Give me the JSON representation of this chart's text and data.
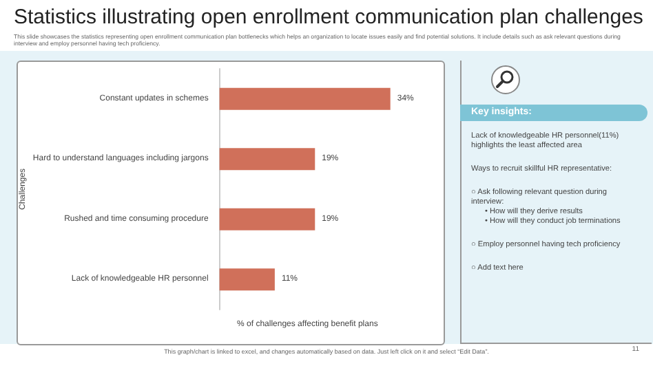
{
  "chart_data": {
    "type": "bar",
    "orientation": "horizontal",
    "title": "Statistics illustrating open enrollment communication plan challenges",
    "subtitle": "This slide showcases the statistics representing open enrollment communication plan bottlenecks which helps an organization to locate issues easily and find potential solutions. It include details such as ask relevant questions during interview and employ personnel having tech proficiency.",
    "xlabel": "% of challenges affecting benefit plans",
    "ylabel": "Challenges",
    "categories": [
      "Constant updates in schemes",
      "Hard to understand languages including jargons",
      "Rushed and time consuming procedure",
      "Lack of knowledgeable HR personnel"
    ],
    "values": [
      34,
      19,
      19,
      11
    ],
    "value_labels": [
      "34%",
      "19%",
      "19%",
      "11%"
    ],
    "color": "#d0705a",
    "annotations": [
      "Key insights:",
      "Lack of knowledgeable HR personnel(11%) highlights the least affected area",
      "Ways to recruit skillful HR representative:",
      "○ Ask following relevant question during interview:",
      "• How will they derive results",
      "• How will they conduct job terminations",
      "○ Employ personnel having tech proficiency",
      "○ Add text here",
      "This graph/chart is linked to excel, and changes automatically based on data. Just left click on it and select “Edit Data”.",
      "11"
    ]
  }
}
